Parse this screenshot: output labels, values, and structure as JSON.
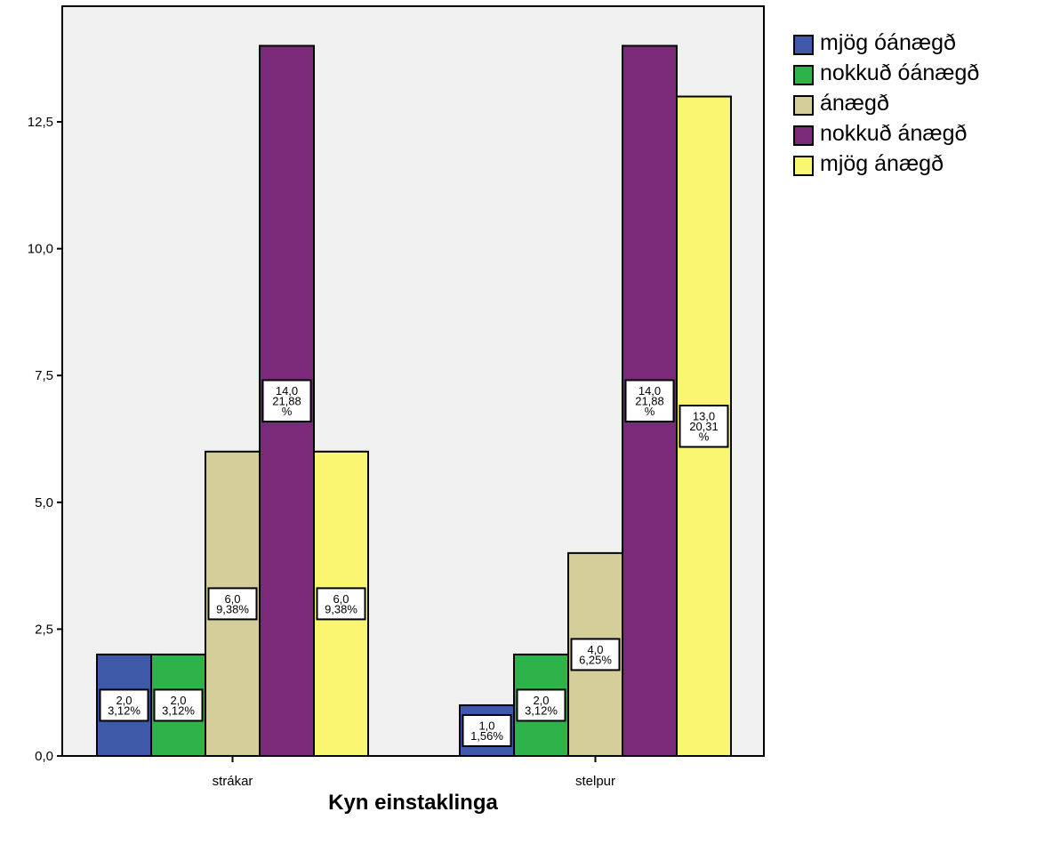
{
  "chart_data": {
    "type": "bar",
    "title": "",
    "xlabel": "Kyn einstaklinga",
    "ylabel": "",
    "categories": [
      "strákar",
      "stelpur"
    ],
    "ylim": [
      0,
      14
    ],
    "yticks": [
      "0,0",
      "2,5",
      "5,0",
      "7,5",
      "10,0",
      "12,5"
    ],
    "ytick_values": [
      0,
      2.5,
      5,
      7.5,
      10,
      12.5
    ],
    "grid": false,
    "legend_position": "right",
    "series": [
      {
        "name": "mjög óánægð",
        "color": "#3E59A8",
        "values": [
          2,
          1
        ],
        "labels": [
          [
            "2,0",
            "3,12%"
          ],
          [
            "1,0",
            "1,56%"
          ]
        ]
      },
      {
        "name": "nokkuð óánægð",
        "color": "#2DB34A",
        "values": [
          2,
          2
        ],
        "labels": [
          [
            "2,0",
            "3,12%"
          ],
          [
            "2,0",
            "3,12%"
          ]
        ]
      },
      {
        "name": "ánægð",
        "color": "#D4CE9A",
        "values": [
          6,
          4
        ],
        "labels": [
          [
            "6,0",
            "9,38%"
          ],
          [
            "4,0",
            "6,25%"
          ]
        ]
      },
      {
        "name": "nokkuð ánægð",
        "color": "#7B2979",
        "values": [
          14,
          14
        ],
        "labels": [
          [
            "14,0",
            "21,88",
            "%"
          ],
          [
            "14,0",
            "21,88",
            "%"
          ]
        ]
      },
      {
        "name": "mjög ánægð",
        "color": "#FBF672",
        "values": [
          6,
          13
        ],
        "labels": [
          [
            "6,0",
            "9,38%"
          ],
          [
            "13,0",
            "20,31",
            "%"
          ]
        ]
      }
    ]
  }
}
